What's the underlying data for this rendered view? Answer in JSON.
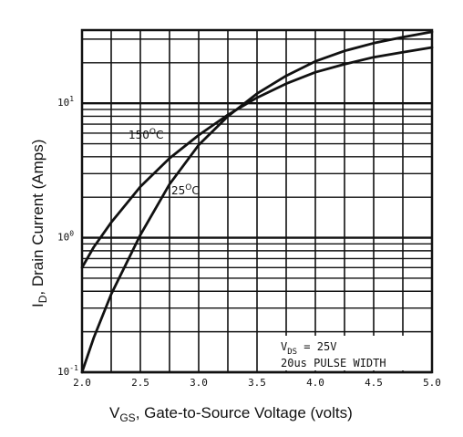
{
  "chart_data": {
    "type": "line",
    "x_axis": {
      "label_main": "V",
      "label_sub": "GS",
      "label_rest": ", Gate-to-Source Voltage (volts)",
      "range": [
        2.0,
        5.0
      ],
      "ticks": [
        "2.0",
        "2.5",
        "3.0",
        "3.5",
        "4.0",
        "4.5",
        "5.0"
      ],
      "minor_step": 0.25
    },
    "y_axis": {
      "label_main": "I",
      "label_sub": "D",
      "label_rest": ", Drain Current (Amps)",
      "scale": "log",
      "range": [
        0.1,
        35
      ],
      "tick_labels": [
        {
          "base": "10",
          "exp": "1",
          "value": 10
        },
        {
          "base": "10",
          "exp": "0",
          "value": 1
        },
        {
          "base": "10",
          "exp": "-1",
          "value": 0.1
        }
      ]
    },
    "series": [
      {
        "name": "150°C",
        "label_main": "150",
        "label_sup": "O",
        "label_unit": "C",
        "x": [
          2.0,
          2.1,
          2.25,
          2.5,
          2.75,
          3.0,
          3.25,
          3.5,
          3.75,
          4.0,
          4.25,
          4.5,
          4.75,
          5.0
        ],
        "y": [
          0.6,
          0.85,
          1.3,
          2.4,
          3.9,
          5.8,
          8.2,
          11.0,
          14.0,
          17.0,
          19.5,
          22.0,
          24.0,
          26.0
        ]
      },
      {
        "name": "25°C",
        "label_main": "25",
        "label_sup": "O",
        "label_unit": "C",
        "x": [
          2.0,
          2.1,
          2.25,
          2.5,
          2.75,
          3.0,
          3.25,
          3.5,
          3.75,
          4.0,
          4.25,
          4.5,
          4.75,
          5.0
        ],
        "y": [
          0.1,
          0.18,
          0.38,
          1.05,
          2.5,
          4.9,
          8.0,
          11.8,
          16.0,
          20.5,
          24.5,
          28.0,
          31.0,
          34.0
        ]
      }
    ],
    "grid": true,
    "annotation": {
      "vds_main": "V",
      "vds_sub": "DS",
      "vds_rest": " = 25V",
      "pulse": "20us PULSE WIDTH"
    }
  }
}
